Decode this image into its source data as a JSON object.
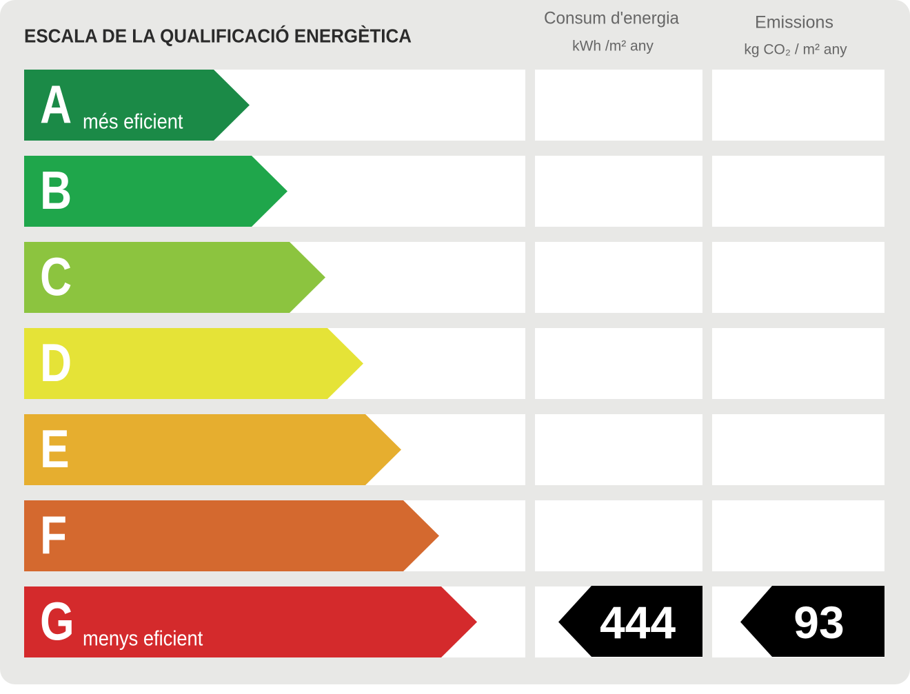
{
  "header": {
    "title": "ESCALA DE LA QUALIFICACIÓ ENERGÈTICA",
    "consumption": {
      "title": "Consum d'energia",
      "unit": "kWh /m² any"
    },
    "emissions": {
      "title": "Emissions",
      "unit": "kg CO₂ / m² any"
    }
  },
  "rows": [
    {
      "letter": "A",
      "label": "més eficient",
      "color": "#1b8a47"
    },
    {
      "letter": "B",
      "color": "#1fa64b"
    },
    {
      "letter": "C",
      "color": "#8cc43f"
    },
    {
      "letter": "D",
      "color": "#e5e337"
    },
    {
      "letter": "E",
      "color": "#e6ae2f"
    },
    {
      "letter": "F",
      "color": "#d4692f"
    },
    {
      "letter": "G",
      "label": "menys eficient",
      "color": "#d42a2c",
      "consumption": "444",
      "emissions": "93"
    }
  ]
}
